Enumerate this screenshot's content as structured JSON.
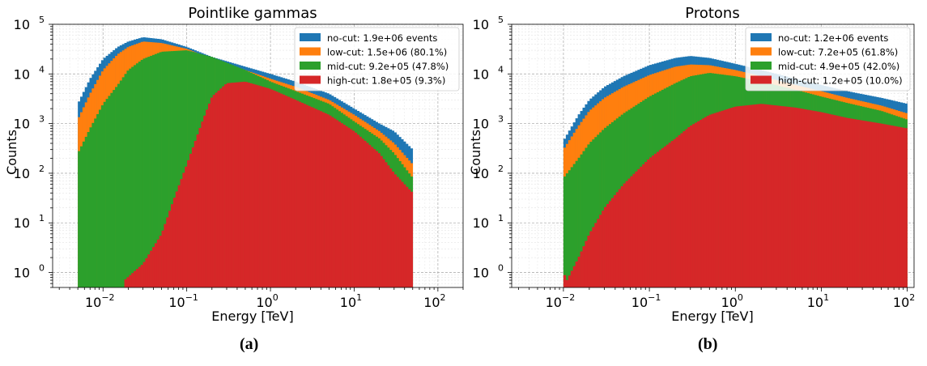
{
  "colors": {
    "no-cut": "#1f77b4",
    "low-cut": "#ff7f0e",
    "mid-cut": "#2ca02c",
    "high-cut": "#d62728"
  },
  "captions": [
    "(a)",
    "(b)"
  ],
  "chart_data": [
    {
      "type": "bar",
      "subtype": "stacked-overlaid-histogram",
      "title": "Pointlike gammas",
      "xlabel": "Energy [TeV]",
      "ylabel": "Counts",
      "xscale": "log",
      "yscale": "log",
      "xlim": [
        0.0025,
        200
      ],
      "ylim": [
        0.5,
        100000
      ],
      "xticks": [
        {
          "value": 0.01,
          "base": "10",
          "exp": "−2"
        },
        {
          "value": 0.1,
          "base": "10",
          "exp": "−1"
        },
        {
          "value": 1,
          "base": "10",
          "exp": "0"
        },
        {
          "value": 10,
          "base": "10",
          "exp": "1"
        },
        {
          "value": 100,
          "base": "10",
          "exp": "2"
        }
      ],
      "yticks": [
        {
          "value": 1,
          "base": "10",
          "exp": "0"
        },
        {
          "value": 10,
          "base": "10",
          "exp": "1"
        },
        {
          "value": 100,
          "base": "10",
          "exp": "2"
        },
        {
          "value": 1000,
          "base": "10",
          "exp": "3"
        },
        {
          "value": 10000,
          "base": "10",
          "exp": "4"
        },
        {
          "value": 100000,
          "base": "10",
          "exp": "5"
        }
      ],
      "grid": true,
      "legend_position": "top-right",
      "series": [
        {
          "name": "no-cut",
          "legend": "no-cut: 1.9e+06 events",
          "color": "#1f77b4",
          "points": [
            [
              0.005,
              2500
            ],
            [
              0.007,
              8000
            ],
            [
              0.01,
              20000
            ],
            [
              0.015,
              35000
            ],
            [
              0.02,
              45000
            ],
            [
              0.03,
              55000
            ],
            [
              0.05,
              50000
            ],
            [
              0.1,
              35000
            ],
            [
              0.2,
              22000
            ],
            [
              0.5,
              14000
            ],
            [
              1,
              10000
            ],
            [
              2,
              7000
            ],
            [
              5,
              4000
            ],
            [
              10,
              2000
            ],
            [
              20,
              1000
            ],
            [
              30,
              700
            ],
            [
              50,
              300
            ]
          ]
        },
        {
          "name": "low-cut",
          "legend": "low-cut: 1.5e+06 (80.1%)",
          "color": "#ff7f0e",
          "points": [
            [
              0.005,
              1200
            ],
            [
              0.007,
              4000
            ],
            [
              0.01,
              12000
            ],
            [
              0.015,
              25000
            ],
            [
              0.02,
              35000
            ],
            [
              0.03,
              45000
            ],
            [
              0.05,
              42000
            ],
            [
              0.1,
              32000
            ],
            [
              0.2,
              20000
            ],
            [
              0.5,
              12000
            ],
            [
              1,
              8000
            ],
            [
              2,
              5500
            ],
            [
              5,
              3000
            ],
            [
              10,
              1500
            ],
            [
              20,
              700
            ],
            [
              30,
              400
            ],
            [
              50,
              150
            ]
          ]
        },
        {
          "name": "mid-cut",
          "legend": "mid-cut: 9.2e+05 (47.8%)",
          "color": "#2ca02c",
          "points": [
            [
              0.005,
              250
            ],
            [
              0.007,
              800
            ],
            [
              0.01,
              2500
            ],
            [
              0.015,
              6000
            ],
            [
              0.02,
              12000
            ],
            [
              0.03,
              20000
            ],
            [
              0.05,
              28000
            ],
            [
              0.1,
              30000
            ],
            [
              0.2,
              22000
            ],
            [
              0.5,
              12000
            ],
            [
              1,
              7000
            ],
            [
              2,
              4500
            ],
            [
              5,
              2500
            ],
            [
              10,
              1100
            ],
            [
              20,
              500
            ],
            [
              30,
              250
            ],
            [
              50,
              80
            ]
          ]
        },
        {
          "name": "high-cut",
          "legend": "high-cut: 1.8e+05 (9.3%)",
          "color": "#d62728",
          "points": [
            [
              0.018,
              0.7
            ],
            [
              0.03,
              1.5
            ],
            [
              0.05,
              6
            ],
            [
              0.07,
              30
            ],
            [
              0.1,
              150
            ],
            [
              0.15,
              1000
            ],
            [
              0.2,
              3500
            ],
            [
              0.3,
              6500
            ],
            [
              0.5,
              7000
            ],
            [
              1,
              5000
            ],
            [
              2,
              3000
            ],
            [
              5,
              1500
            ],
            [
              10,
              700
            ],
            [
              20,
              250
            ],
            [
              30,
              100
            ],
            [
              50,
              40
            ]
          ]
        }
      ]
    },
    {
      "type": "bar",
      "subtype": "stacked-overlaid-histogram",
      "title": "Protons",
      "xlabel": "Energy [TeV]",
      "ylabel": "Counts",
      "xscale": "log",
      "yscale": "log",
      "xlim": [
        0.0025,
        120
      ],
      "ylim": [
        0.5,
        100000
      ],
      "xticks": [
        {
          "value": 0.01,
          "base": "10",
          "exp": "−2"
        },
        {
          "value": 0.1,
          "base": "10",
          "exp": "−1"
        },
        {
          "value": 1,
          "base": "10",
          "exp": "0"
        },
        {
          "value": 10,
          "base": "10",
          "exp": "1"
        },
        {
          "value": 100,
          "base": "10",
          "exp": "2"
        }
      ],
      "yticks": [
        {
          "value": 1,
          "base": "10",
          "exp": "0"
        },
        {
          "value": 10,
          "base": "10",
          "exp": "1"
        },
        {
          "value": 100,
          "base": "10",
          "exp": "2"
        },
        {
          "value": 1000,
          "base": "10",
          "exp": "3"
        },
        {
          "value": 10000,
          "base": "10",
          "exp": "4"
        },
        {
          "value": 100000,
          "base": "10",
          "exp": "5"
        }
      ],
      "grid": true,
      "legend_position": "top-right",
      "series": [
        {
          "name": "no-cut",
          "legend": "no-cut: 1.2e+06 events",
          "color": "#1f77b4",
          "points": [
            [
              0.01,
              450
            ],
            [
              0.015,
              1500
            ],
            [
              0.02,
              3000
            ],
            [
              0.03,
              5500
            ],
            [
              0.05,
              9000
            ],
            [
              0.1,
              15000
            ],
            [
              0.2,
              21000
            ],
            [
              0.3,
              23000
            ],
            [
              0.5,
              21000
            ],
            [
              1,
              16000
            ],
            [
              2,
              12000
            ],
            [
              5,
              8000
            ],
            [
              10,
              6000
            ],
            [
              20,
              4500
            ],
            [
              50,
              3300
            ],
            [
              100,
              2500
            ]
          ]
        },
        {
          "name": "low-cut",
          "legend": "low-cut: 7.2e+05 (61.8%)",
          "color": "#ff7f0e",
          "points": [
            [
              0.01,
              300
            ],
            [
              0.015,
              900
            ],
            [
              0.02,
              1800
            ],
            [
              0.03,
              3300
            ],
            [
              0.05,
              5500
            ],
            [
              0.1,
              9500
            ],
            [
              0.2,
              14000
            ],
            [
              0.3,
              15500
            ],
            [
              0.5,
              15000
            ],
            [
              1,
              12000
            ],
            [
              2,
              9000
            ],
            [
              5,
              6000
            ],
            [
              10,
              4500
            ],
            [
              20,
              3300
            ],
            [
              50,
              2300
            ],
            [
              100,
              1600
            ]
          ]
        },
        {
          "name": "mid-cut",
          "legend": "mid-cut: 4.9e+05 (42.0%)",
          "color": "#2ca02c",
          "points": [
            [
              0.01,
              80
            ],
            [
              0.015,
              200
            ],
            [
              0.02,
              400
            ],
            [
              0.03,
              800
            ],
            [
              0.05,
              1600
            ],
            [
              0.1,
              3500
            ],
            [
              0.2,
              6500
            ],
            [
              0.3,
              9000
            ],
            [
              0.5,
              10500
            ],
            [
              1,
              9000
            ],
            [
              2,
              7000
            ],
            [
              5,
              4800
            ],
            [
              10,
              3500
            ],
            [
              20,
              2600
            ],
            [
              50,
              1800
            ],
            [
              100,
              1200
            ]
          ]
        },
        {
          "name": "high-cut",
          "legend": "high-cut: 1.2e+05 (10.0%)",
          "color": "#d62728",
          "points": [
            [
              0.01,
              1
            ],
            [
              0.011,
              0.7
            ],
            [
              0.015,
              2
            ],
            [
              0.02,
              6
            ],
            [
              0.03,
              20
            ],
            [
              0.05,
              60
            ],
            [
              0.1,
              200
            ],
            [
              0.2,
              500
            ],
            [
              0.3,
              900
            ],
            [
              0.5,
              1500
            ],
            [
              1,
              2200
            ],
            [
              2,
              2500
            ],
            [
              5,
              2100
            ],
            [
              10,
              1700
            ],
            [
              20,
              1300
            ],
            [
              50,
              1000
            ],
            [
              100,
              800
            ]
          ]
        }
      ]
    }
  ]
}
